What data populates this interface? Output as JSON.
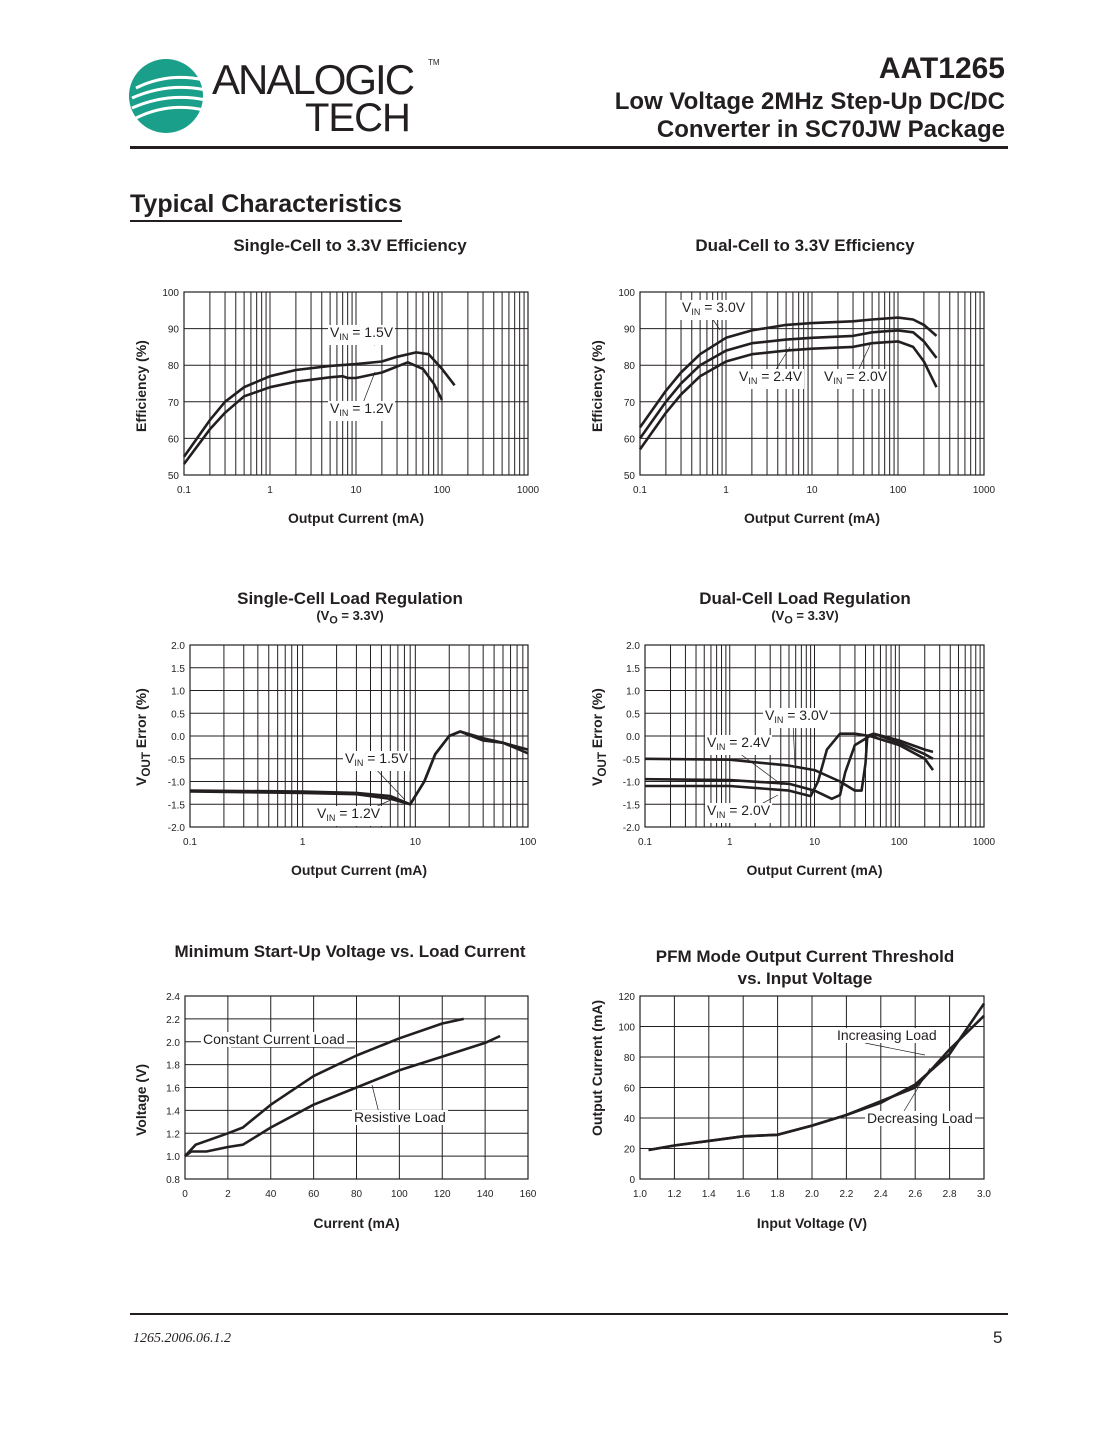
{
  "header": {
    "logo_line1": "ANALOGIC",
    "logo_line2": "TECH",
    "logo_tm": "TM",
    "part_number": "AAT1265",
    "subtitle_line1": "Low Voltage 2MHz Step-Up DC/DC",
    "subtitle_line2": "Converter in SC70JW Package",
    "brand_color": "#1aa08a"
  },
  "section_title": "Typical Characteristics",
  "footer": {
    "doc_number": "1265.2006.06.1.2",
    "page": "5"
  },
  "chart_data": [
    {
      "type": "line",
      "title": "Single-Cell to 3.3V Efficiency",
      "subtitle": "",
      "xlabel": "Output Current (mA)",
      "ylabel": "Efficiency (%)",
      "xscale": "log",
      "xlim": [
        0.1,
        1000
      ],
      "ylim": [
        50,
        100
      ],
      "grid": true,
      "x_ticks": [
        "0.1",
        "1",
        "10",
        "100",
        "1000"
      ],
      "y_ticks": [
        "50",
        "60",
        "70",
        "80",
        "90",
        "100"
      ],
      "annotations": [
        {
          "v": "V",
          "sub": "IN",
          "rest": " = 1.5V"
        },
        {
          "v": "V",
          "sub": "IN",
          "rest": " = 1.2V"
        }
      ],
      "series": [
        {
          "name": "VIN = 1.5V",
          "x": [
            0.1,
            0.2,
            0.3,
            0.5,
            1,
            2,
            5,
            10,
            20,
            30,
            50,
            70,
            100,
            140
          ],
          "y": [
            55,
            65,
            70,
            74,
            77,
            78.7,
            79.8,
            80.3,
            81,
            82.3,
            83.5,
            83,
            79,
            74.5
          ]
        },
        {
          "name": "VIN = 1.2V",
          "x": [
            0.1,
            0.2,
            0.3,
            0.5,
            1,
            2,
            5,
            7,
            8,
            10,
            20,
            40,
            60,
            80,
            100
          ],
          "y": [
            53,
            62.5,
            67,
            71.5,
            74,
            75.5,
            76.7,
            77,
            76.5,
            76.5,
            78,
            80.8,
            79,
            75,
            70.5
          ]
        }
      ]
    },
    {
      "type": "line",
      "title": "Dual-Cell to 3.3V Efficiency",
      "subtitle": "",
      "xlabel": "Output Current (mA)",
      "ylabel": "Efficiency (%)",
      "xscale": "log",
      "xlim": [
        0.1,
        1000
      ],
      "ylim": [
        50,
        100
      ],
      "grid": true,
      "x_ticks": [
        "0.1",
        "1",
        "10",
        "100",
        "1000"
      ],
      "y_ticks": [
        "50",
        "60",
        "70",
        "80",
        "90",
        "100"
      ],
      "annotations": [
        {
          "v": "V",
          "sub": "IN",
          "rest": " = 3.0V"
        },
        {
          "v": "V",
          "sub": "IN",
          "rest": " = 2.4V"
        },
        {
          "v": "V",
          "sub": "IN",
          "rest": " = 2.0V"
        }
      ],
      "series": [
        {
          "name": "VIN = 3.0V",
          "x": [
            0.1,
            0.2,
            0.3,
            0.5,
            1,
            2,
            5,
            10,
            30,
            50,
            100,
            150,
            200,
            280
          ],
          "y": [
            63,
            73,
            78,
            83,
            87.5,
            89.5,
            91,
            91.5,
            92,
            92.5,
            93,
            92.5,
            91,
            88
          ]
        },
        {
          "name": "VIN = 2.4V",
          "x": [
            0.1,
            0.2,
            0.3,
            0.5,
            1,
            2,
            5,
            10,
            30,
            50,
            100,
            150,
            200,
            280
          ],
          "y": [
            60,
            70,
            75,
            80,
            84,
            86,
            87,
            87.5,
            88,
            89,
            89.5,
            89,
            86.5,
            82
          ]
        },
        {
          "name": "VIN = 2.0V",
          "x": [
            0.1,
            0.2,
            0.3,
            0.5,
            1,
            2,
            5,
            10,
            30,
            50,
            100,
            150,
            200,
            280
          ],
          "y": [
            57,
            67,
            72,
            77,
            81,
            83,
            84,
            84.5,
            85,
            86,
            86.5,
            85,
            81,
            74
          ]
        }
      ]
    },
    {
      "type": "line",
      "title": "Single-Cell Load Regulation",
      "subtitle": "(V",
      "subtitle_sub": "O",
      "subtitle_rest": " = 3.3V)",
      "xlabel": "Output Current (mA)",
      "ylabel": "V",
      "ylabel_sub": "OUT",
      "ylabel_rest": " Error (%)",
      "xscale": "log",
      "xlim": [
        0.1,
        100
      ],
      "ylim": [
        -2,
        2
      ],
      "grid": true,
      "x_ticks": [
        "0.1",
        "1",
        "10",
        "100"
      ],
      "y_ticks": [
        "-2.0",
        "-1.5",
        "-1.0",
        "-0.5",
        "0.0",
        "0.5",
        "1.0",
        "1.5",
        "2.0"
      ],
      "annotations": [
        {
          "v": "V",
          "sub": "IN",
          "rest": " = 1.5V"
        },
        {
          "v": "V",
          "sub": "IN",
          "rest": " = 1.2V"
        }
      ],
      "series": [
        {
          "name": "VIN = 1.5V",
          "x": [
            0.1,
            1,
            3,
            6,
            9,
            12,
            15,
            20,
            25,
            40,
            60,
            100
          ],
          "y": [
            -1.2,
            -1.22,
            -1.25,
            -1.32,
            -1.5,
            -1.0,
            -0.4,
            0,
            0.1,
            -0.1,
            -0.15,
            -0.3
          ]
        },
        {
          "name": "VIN = 1.2V",
          "x": [
            0.1,
            1,
            3,
            6,
            9,
            12,
            15,
            20,
            25,
            40,
            60,
            100
          ],
          "y": [
            -1.22,
            -1.25,
            -1.28,
            -1.38,
            -1.5,
            -1.0,
            -0.4,
            0,
            0.1,
            -0.05,
            -0.15,
            -0.38
          ]
        }
      ]
    },
    {
      "type": "line",
      "title": "Dual-Cell Load Regulation",
      "subtitle": "(V",
      "subtitle_sub": "O",
      "subtitle_rest": " = 3.3V)",
      "xlabel": "Output Current (mA)",
      "ylabel": "V",
      "ylabel_sub": "OUT",
      "ylabel_rest": " Error (%)",
      "xscale": "log",
      "xlim": [
        0.1,
        1000
      ],
      "ylim": [
        -2,
        2
      ],
      "grid": true,
      "x_ticks": [
        "0.1",
        "1",
        "10",
        "100",
        "1000"
      ],
      "y_ticks": [
        "-2.0",
        "-1.5",
        "-1.0",
        "-0.5",
        "0.0",
        "0.5",
        "1.0",
        "1.5",
        "2.0"
      ],
      "annotations": [
        {
          "v": "V",
          "sub": "IN",
          "rest": " = 3.0V"
        },
        {
          "v": "V",
          "sub": "IN",
          "rest": " = 2.4V"
        },
        {
          "v": "V",
          "sub": "IN",
          "rest": " = 2.0V"
        }
      ],
      "series": [
        {
          "name": "VIN = 3.0V",
          "x": [
            0.1,
            1,
            5,
            10,
            20,
            30,
            36,
            40,
            42,
            50,
            100,
            200,
            250
          ],
          "y": [
            -0.5,
            -0.52,
            -0.65,
            -0.75,
            -1.0,
            -1.2,
            -1.2,
            -0.6,
            0,
            0.05,
            -0.1,
            -0.3,
            -0.35
          ]
        },
        {
          "name": "VIN = 2.4V",
          "x": [
            0.1,
            1,
            5,
            10,
            16,
            20,
            23,
            30,
            45,
            50,
            100,
            200,
            250
          ],
          "y": [
            -0.95,
            -0.97,
            -1.05,
            -1.2,
            -1.38,
            -1.3,
            -0.8,
            -0.2,
            0,
            0.05,
            -0.15,
            -0.4,
            -0.5
          ]
        },
        {
          "name": "VIN = 2.0V",
          "x": [
            0.1,
            1,
            5,
            9,
            11,
            14,
            20,
            30,
            45,
            100,
            200,
            250
          ],
          "y": [
            -1.1,
            -1.1,
            -1.2,
            -1.32,
            -1.0,
            -0.3,
            0.05,
            0.05,
            0,
            -0.2,
            -0.5,
            -0.75
          ]
        }
      ]
    },
    {
      "type": "line",
      "title": "Minimum Start-Up Voltage vs. Load Current",
      "subtitle": "",
      "xlabel": "Current (mA)",
      "ylabel": "Voltage (V)",
      "xscale": "linear",
      "xlim": [
        0,
        160
      ],
      "ylim": [
        0.8,
        2.4
      ],
      "grid": true,
      "x_ticks": [
        "0",
        "2",
        "40",
        "60",
        "80",
        "100",
        "120",
        "140",
        "160"
      ],
      "y_ticks": [
        "0.8",
        "1.0",
        "1.2",
        "1.4",
        "1.6",
        "1.8",
        "2.0",
        "2.2",
        "2.4"
      ],
      "annotations": [
        {
          "v": "Constant Current Load",
          "sub": "",
          "rest": ""
        },
        {
          "v": "Resistive Load",
          "sub": "",
          "rest": ""
        }
      ],
      "series": [
        {
          "name": "Constant Current Load",
          "x": [
            0,
            5,
            20,
            27,
            40,
            60,
            80,
            100,
            120,
            130
          ],
          "y": [
            1.0,
            1.1,
            1.2,
            1.25,
            1.45,
            1.7,
            1.88,
            2.03,
            2.16,
            2.2
          ]
        },
        {
          "name": "Resistive Load",
          "x": [
            0,
            3,
            10,
            20,
            27,
            40,
            60,
            80,
            100,
            120,
            140,
            147
          ],
          "y": [
            1.0,
            1.04,
            1.04,
            1.08,
            1.1,
            1.25,
            1.45,
            1.6,
            1.75,
            1.87,
            1.99,
            2.05
          ]
        }
      ]
    },
    {
      "type": "line",
      "title": "PFM Mode Output Current Threshold",
      "subtitle": "vs. Input Voltage",
      "xlabel": "Input Voltage (V)",
      "ylabel": "Output Current (mA)",
      "xscale": "linear",
      "xlim": [
        1.0,
        3.0
      ],
      "ylim": [
        0,
        120
      ],
      "grid": true,
      "x_ticks": [
        "1.0",
        "1.2",
        "1.4",
        "1.6",
        "1.8",
        "2.0",
        "2.2",
        "2.4",
        "2.6",
        "2.8",
        "3.0"
      ],
      "y_ticks": [
        "0",
        "20",
        "40",
        "60",
        "80",
        "100",
        "120"
      ],
      "annotations": [
        {
          "v": "Increasing Load",
          "sub": "",
          "rest": ""
        },
        {
          "v": "Decreasing Load",
          "sub": "",
          "rest": ""
        }
      ],
      "series": [
        {
          "name": "Increasing Load",
          "x": [
            1.05,
            1.2,
            1.4,
            1.6,
            1.8,
            2.0,
            2.2,
            2.4,
            2.6,
            2.8,
            3.0
          ],
          "y": [
            19,
            22,
            25,
            28,
            29,
            35,
            42,
            50,
            62,
            82,
            115
          ]
        },
        {
          "name": "Decreasing Load",
          "x": [
            1.05,
            1.2,
            1.4,
            1.6,
            1.8,
            2.0,
            2.2,
            2.4,
            2.6,
            2.8,
            3.0
          ],
          "y": [
            19,
            22,
            25,
            28,
            29,
            35,
            42,
            51,
            60,
            85,
            107
          ]
        }
      ]
    }
  ]
}
